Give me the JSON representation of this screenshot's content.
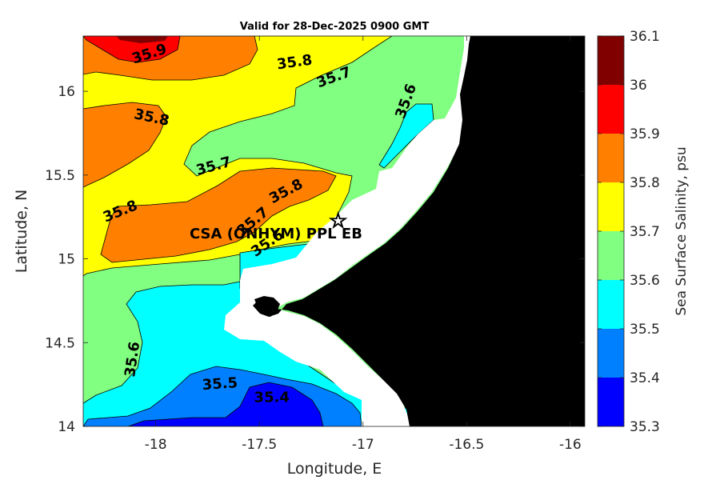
{
  "title": "Valid for 28-Dec-2025 0900 GMT",
  "xlabel": "Longitude, E",
  "ylabel": "Latitude, N",
  "colorbar_label": "Sea Surface Salinity, psu",
  "station_label": "CSA (ONHYM) PPL EB",
  "chart_data": {
    "type": "heatmap",
    "title": "Valid for 28-Dec-2025 0900 GMT",
    "xlabel": "Longitude, E",
    "ylabel": "Latitude, N",
    "xlim": [
      -18.35,
      -15.93
    ],
    "ylim": [
      14,
      16.33
    ],
    "x_ticks": [
      -18,
      -17.5,
      -17,
      -16.5,
      -16
    ],
    "x_tick_labels": [
      "-18",
      "-17.5",
      "-17",
      "-16.5",
      "-16"
    ],
    "y_ticks": [
      14,
      14.5,
      15,
      15.5,
      16
    ],
    "y_tick_labels": [
      "14",
      "14.5",
      "15",
      "15.5",
      "16"
    ],
    "colorbar": {
      "label": "Sea Surface Salinity, psu",
      "levels": [
        35.3,
        35.4,
        35.5,
        35.6,
        35.7,
        35.8,
        35.9,
        36,
        36.1
      ],
      "tick_labels": [
        "35.3",
        "35.4",
        "35.5",
        "35.6",
        "35.7",
        "35.8",
        "35.9",
        "36",
        "36.1"
      ],
      "colors": [
        "#0000ff",
        "#0080ff",
        "#00ffff",
        "#80ff80",
        "#ffff00",
        "#ff8000",
        "#ff0000",
        "#800000"
      ]
    },
    "contour_labels": [
      {
        "text": "35.9",
        "lon": -18.03,
        "lat": 16.22
      },
      {
        "text": "35.8",
        "lon": -17.33,
        "lat": 16.17
      },
      {
        "text": "35.7",
        "lon": -17.14,
        "lat": 16.08
      },
      {
        "text": "35.6",
        "lon": -16.79,
        "lat": 15.94
      },
      {
        "text": "35.8",
        "lon": -18.02,
        "lat": 15.84
      },
      {
        "text": "35.7",
        "lon": -17.72,
        "lat": 15.55
      },
      {
        "text": "35.8",
        "lon": -17.37,
        "lat": 15.4
      },
      {
        "text": "35.8",
        "lon": -18.17,
        "lat": 15.28
      },
      {
        "text": "35.7",
        "lon": -17.53,
        "lat": 15.22
      },
      {
        "text": "35.6",
        "lon": -17.46,
        "lat": 15.09
      },
      {
        "text": "35.6",
        "lon": -18.11,
        "lat": 14.4
      },
      {
        "text": "35.5",
        "lon": -17.69,
        "lat": 14.25
      },
      {
        "text": "35.4",
        "lon": -17.44,
        "lat": 14.17
      }
    ],
    "station": {
      "name": "CSA (ONHYM) PPL EB",
      "lon": -17.12,
      "lat": 15.23,
      "marker": "star"
    },
    "land_color": "#000000",
    "mask_color": "#ffffff"
  }
}
